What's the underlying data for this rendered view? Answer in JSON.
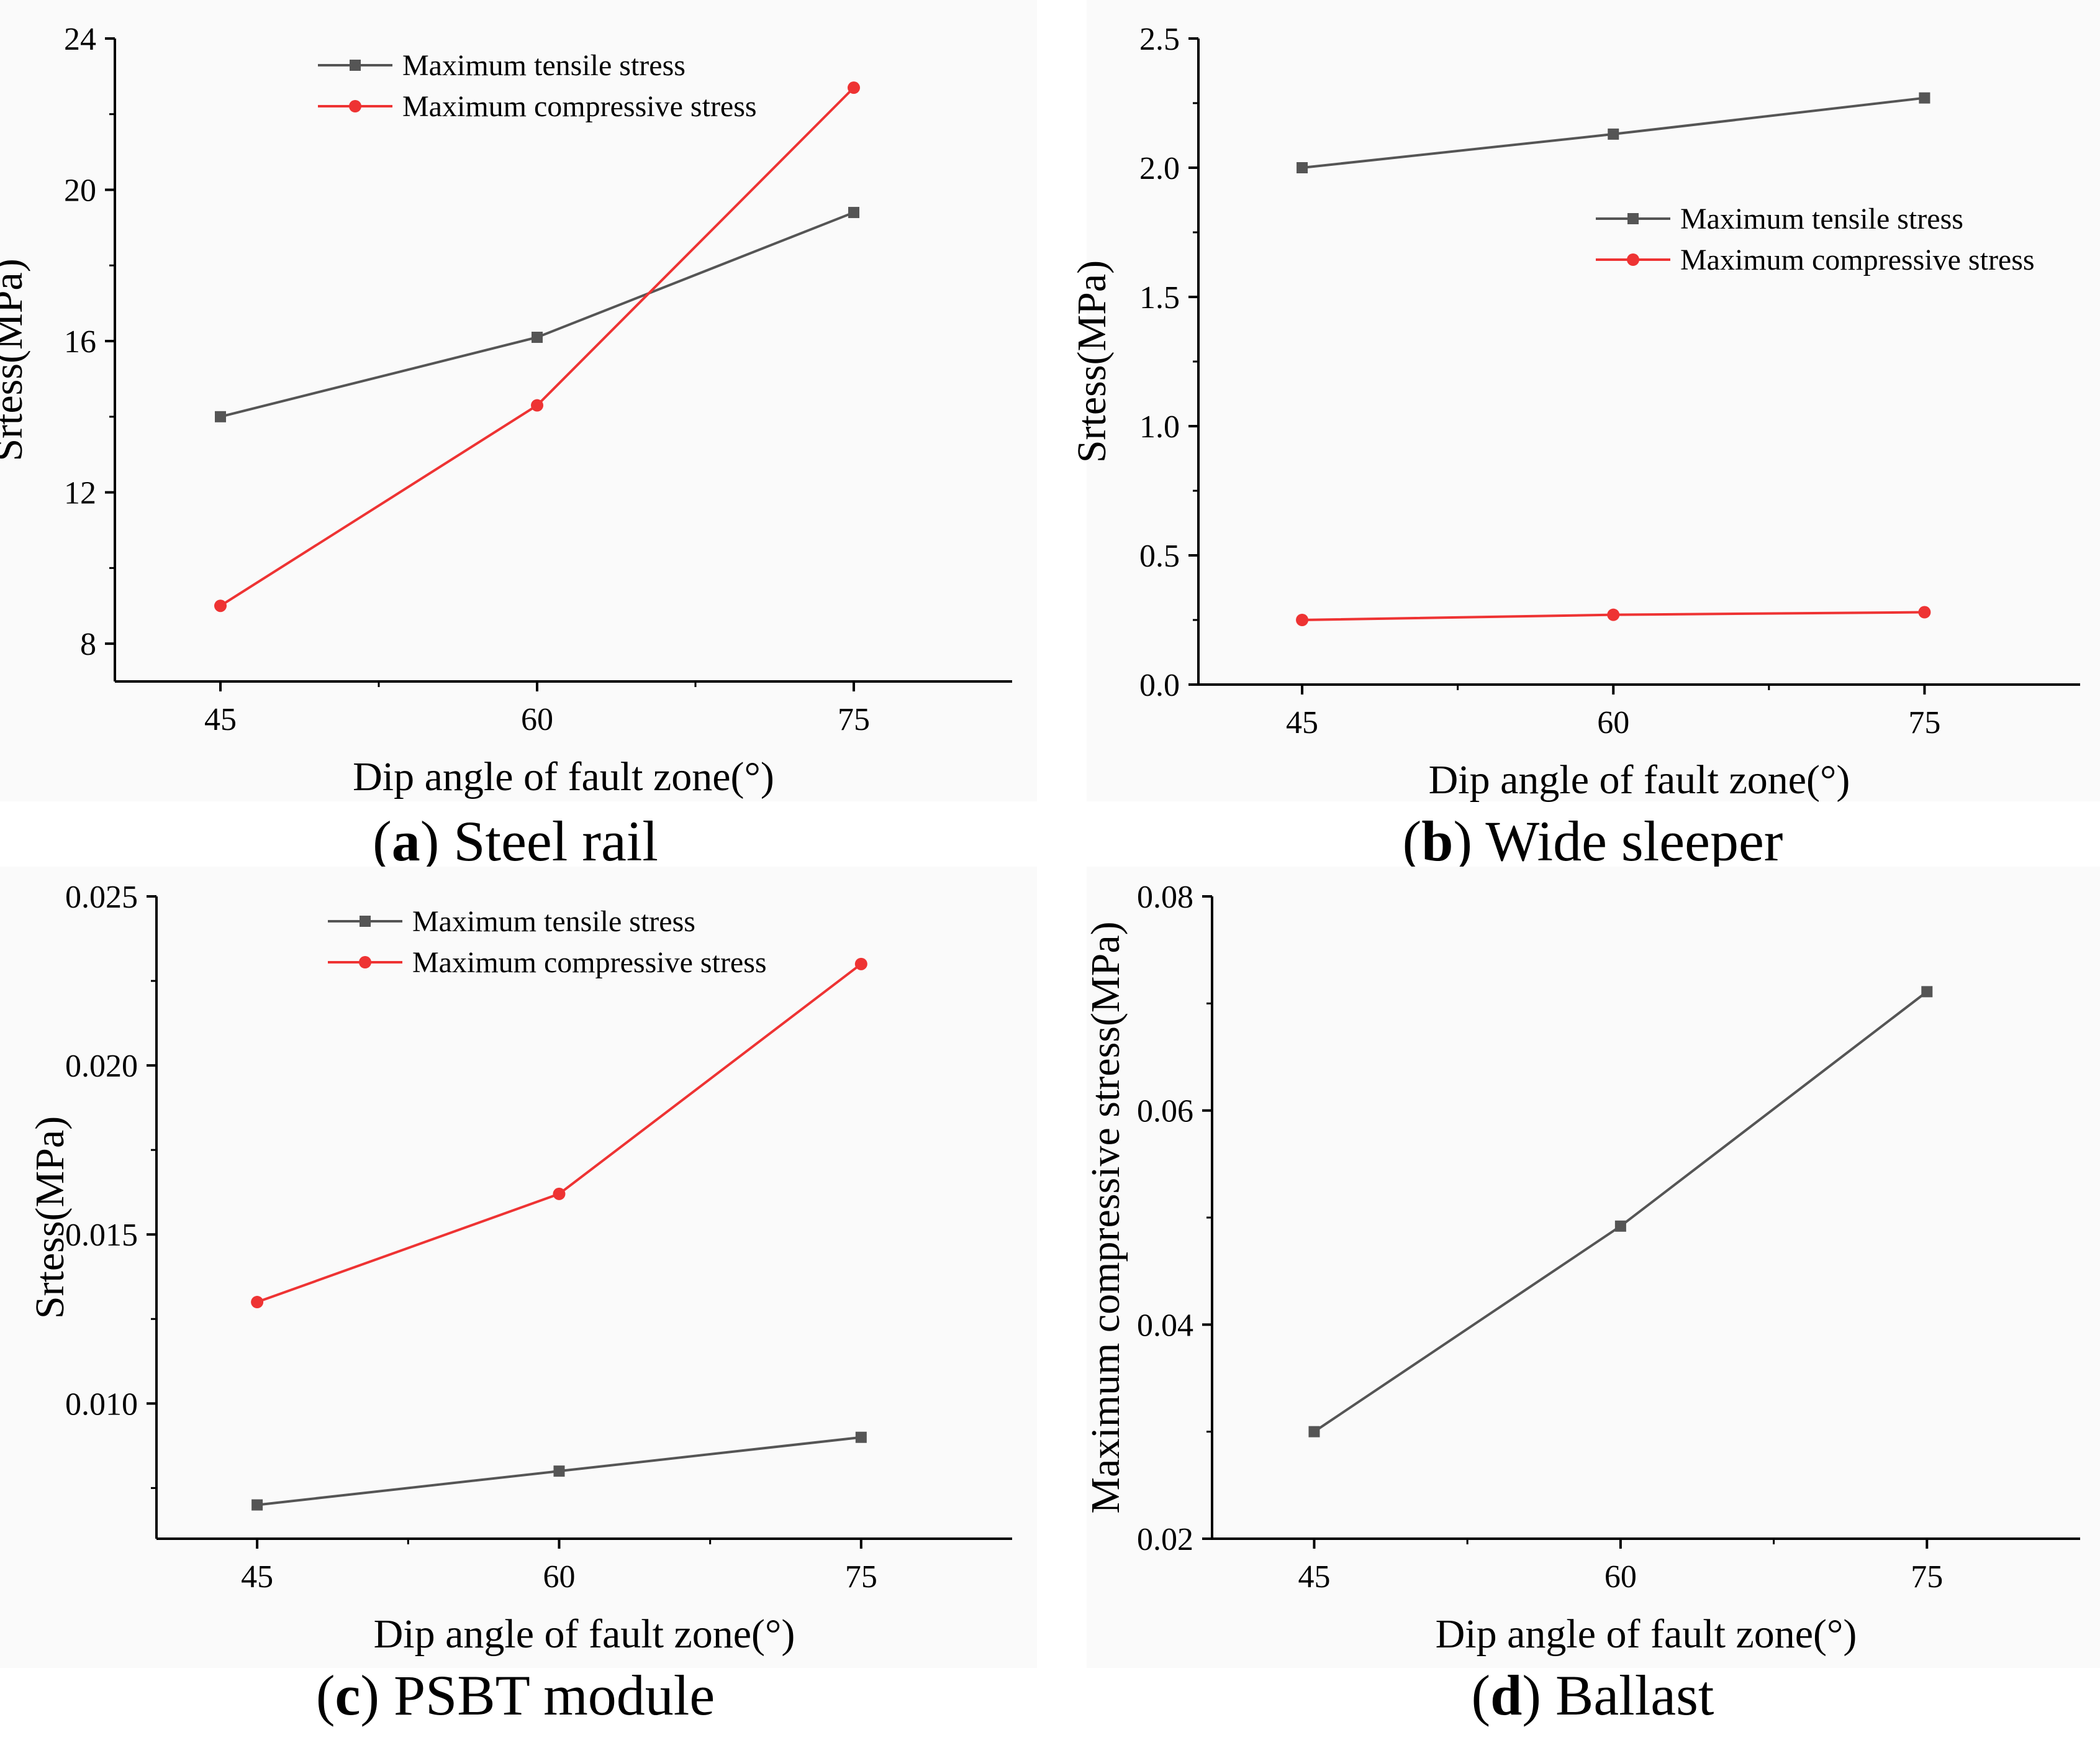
{
  "chart_data": [
    {
      "id": "a",
      "type": "line",
      "caption_letter": "a",
      "caption_text": " Steel rail",
      "x": [
        45,
        60,
        75
      ],
      "xticks": [
        "45",
        "60",
        "75"
      ],
      "xlim": [
        40,
        82.5
      ],
      "ylim": [
        7,
        24
      ],
      "yticks": [
        8,
        12,
        16,
        20,
        24
      ],
      "ytick_labels": [
        "8",
        "12",
        "16",
        "20",
        "24"
      ],
      "xlabel": "Dip angle of fault zone(°)",
      "ylabel": "Srtess(MPa)",
      "legend_position": "top-center",
      "series": [
        {
          "name": "Maximum tensile stress",
          "color": "#555555",
          "marker": "square",
          "values": [
            14.0,
            16.1,
            19.4
          ]
        },
        {
          "name": "Maximum compressive stress",
          "color": "#ee3333",
          "marker": "circle",
          "values": [
            9.0,
            14.3,
            22.7
          ]
        }
      ]
    },
    {
      "id": "b",
      "type": "line",
      "caption_letter": "b",
      "caption_text": " Wide sleeper",
      "x": [
        45,
        60,
        75
      ],
      "xticks": [
        "45",
        "60",
        "75"
      ],
      "xlim": [
        40,
        82.5
      ],
      "ylim": [
        0,
        2.5
      ],
      "yticks": [
        0,
        0.5,
        1,
        1.5,
        2,
        2.5
      ],
      "ytick_labels": [
        "0.0",
        "0.5",
        "1.0",
        "1.5",
        "2.0",
        "2.5"
      ],
      "xlabel": "Dip angle of fault zone(°)",
      "ylabel": "Srtess(MPa)",
      "legend_position": "upper-right",
      "series": [
        {
          "name": "Maximum tensile stress",
          "color": "#555555",
          "marker": "square",
          "values": [
            2.0,
            2.13,
            2.27
          ]
        },
        {
          "name": "Maximum compressive stress",
          "color": "#ee3333",
          "marker": "circle",
          "values": [
            0.25,
            0.27,
            0.28
          ]
        }
      ]
    },
    {
      "id": "c",
      "type": "line",
      "caption_letter": "c",
      "caption_text": " PSBT module",
      "x": [
        45,
        60,
        75
      ],
      "xticks": [
        "45",
        "60",
        "75"
      ],
      "xlim": [
        40,
        82.5
      ],
      "ylim": [
        0.006,
        0.025
      ],
      "yticks": [
        0.01,
        0.015,
        0.02,
        0.025
      ],
      "ytick_labels": [
        "0.010",
        "0.015",
        "0.020",
        "0.025"
      ],
      "xlabel": "Dip angle of fault zone(°)",
      "ylabel": "Srtess(MPa)",
      "legend_position": "top-center",
      "series": [
        {
          "name": "Maximum tensile stress",
          "color": "#555555",
          "marker": "square",
          "values": [
            0.007,
            0.008,
            0.009
          ]
        },
        {
          "name": "Maximum compressive stress",
          "color": "#ee3333",
          "marker": "circle",
          "values": [
            0.013,
            0.0162,
            0.023
          ]
        }
      ]
    },
    {
      "id": "d",
      "type": "line",
      "caption_letter": "d",
      "caption_text": " Ballast",
      "x": [
        45,
        60,
        75
      ],
      "xticks": [
        "45",
        "60",
        "75"
      ],
      "xlim": [
        40,
        82.5
      ],
      "ylim": [
        0.02,
        0.08
      ],
      "yticks": [
        0.02,
        0.04,
        0.06,
        0.08
      ],
      "ytick_labels": [
        "0.02",
        "0.04",
        "0.06",
        "0.08"
      ],
      "xlabel": "Dip angle of fault zone(°)",
      "ylabel": "Maximum compressive stress(MPa)",
      "legend_position": "none",
      "series": [
        {
          "name": "Maximum compressive stress",
          "color": "#555555",
          "marker": "square",
          "values": [
            0.03,
            0.0492,
            0.0711
          ]
        }
      ]
    }
  ]
}
